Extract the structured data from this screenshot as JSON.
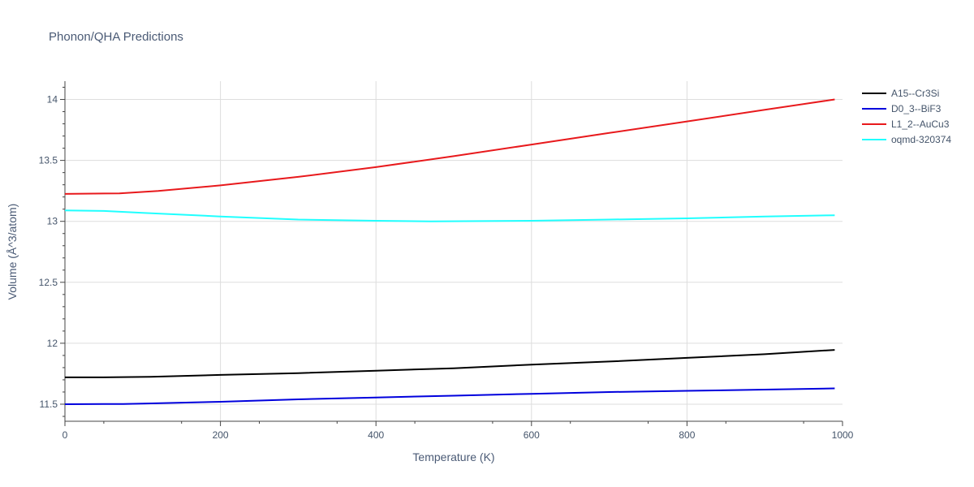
{
  "chart_data": {
    "type": "line",
    "title": "Phonon/QHA Predictions",
    "xlabel": "Temperature (K)",
    "ylabel": "Volume (Å^3/atom)",
    "xlim": [
      0,
      1000
    ],
    "ylim": [
      11.36,
      14.15
    ],
    "xticks": [
      0,
      200,
      400,
      600,
      800,
      1000
    ],
    "xtick_labels": [
      "0",
      "200",
      "400",
      "600",
      "800",
      "1000"
    ],
    "yticks": [
      11.5,
      12,
      12.5,
      13,
      13.5,
      14
    ],
    "ytick_labels": [
      "11.5",
      "12",
      "12.5",
      "13",
      "13.5",
      "14"
    ],
    "grid": true,
    "legend_position": "top-right",
    "series": [
      {
        "name": "A15--Cr3Si",
        "color": "#000000",
        "x": [
          0,
          50,
          110,
          200,
          300,
          400,
          500,
          600,
          700,
          800,
          900,
          990
        ],
        "y": [
          11.72,
          11.72,
          11.725,
          11.74,
          11.755,
          11.775,
          11.795,
          11.825,
          11.85,
          11.88,
          11.91,
          11.945
        ]
      },
      {
        "name": "D0_3--BiF3",
        "color": "#0000dd",
        "x": [
          0,
          75,
          100,
          200,
          300,
          400,
          500,
          600,
          700,
          800,
          900,
          990
        ],
        "y": [
          11.5,
          11.502,
          11.505,
          11.52,
          11.54,
          11.555,
          11.57,
          11.585,
          11.6,
          11.61,
          11.62,
          11.63
        ]
      },
      {
        "name": "L1_2--AuCu3",
        "color": "#e8191c",
        "x": [
          0,
          70,
          120,
          200,
          300,
          400,
          500,
          600,
          700,
          800,
          900,
          990
        ],
        "y": [
          13.225,
          13.23,
          13.25,
          13.295,
          13.365,
          13.445,
          13.535,
          13.63,
          13.725,
          13.82,
          13.915,
          14.0
        ]
      },
      {
        "name": "oqmd-320374",
        "color": "#20ffff",
        "x": [
          0,
          50,
          100,
          200,
          300,
          400,
          470,
          600,
          700,
          800,
          900,
          990
        ],
        "y": [
          13.09,
          13.085,
          13.07,
          13.04,
          13.015,
          13.005,
          13.0,
          13.005,
          13.015,
          13.025,
          13.04,
          13.05
        ]
      }
    ]
  }
}
